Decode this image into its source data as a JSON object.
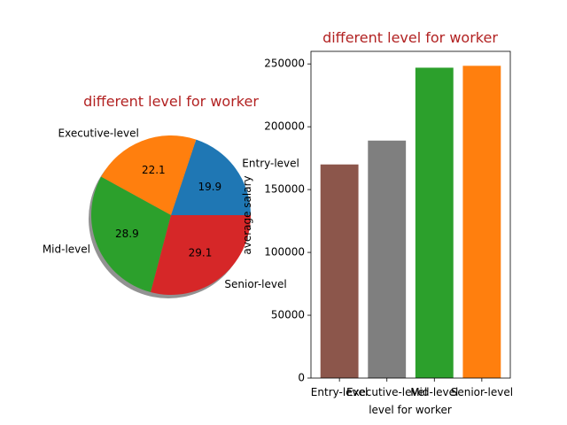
{
  "chart_data": [
    {
      "type": "pie",
      "title": "different level for worker",
      "title_color": "#b22222",
      "shadow": true,
      "start_angle_deg": 0,
      "labels": [
        "Entry-level",
        "Executive-level",
        "Mid-level",
        "Senior-level"
      ],
      "values": [
        19.9,
        22.1,
        28.9,
        29.1
      ],
      "autopct_labels": [
        "19.9",
        "22.1",
        "28.9",
        "29.1"
      ],
      "colors": [
        "#1f77b4",
        "#ff7f0e",
        "#2ca02c",
        "#d62728"
      ]
    },
    {
      "type": "bar",
      "title": "different level for worker",
      "title_color": "#b22222",
      "categories": [
        "Entry-level",
        "Executive-level",
        "Mid-level",
        "Senior-level"
      ],
      "values": [
        170000,
        189000,
        247000,
        248500
      ],
      "colors": [
        "#8c564b",
        "#7f7f7f",
        "#2ca02c",
        "#ff7f0e"
      ],
      "xlabel": "level for worker",
      "ylabel": "average salary",
      "ylim": [
        0,
        260000
      ],
      "yticks": [
        0,
        50000,
        100000,
        150000,
        200000,
        250000
      ],
      "ytick_labels": [
        "0",
        "50000",
        "100000",
        "150000",
        "200000",
        "250000"
      ],
      "grid": false
    }
  ]
}
